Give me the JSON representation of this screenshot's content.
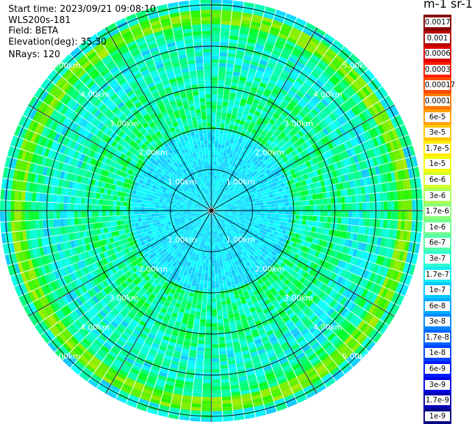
{
  "info": {
    "start_time": "Start time: 2023/09/21 09:08:10",
    "instrument": "WLS200s-181",
    "field": "Field: BETA",
    "elevation": "Elevation(deg): 35.30",
    "nrays": "NRays: 120"
  },
  "units": "m-1 sr-1",
  "range_rings": {
    "labels": [
      "1.00km",
      "2.00km",
      "3.00km",
      "4.00km",
      "5.00km"
    ]
  },
  "colorbar": {
    "levels": [
      {
        "label": "0.0017",
        "color": "#8b0000"
      },
      {
        "label": "0.001",
        "color": "#b40000"
      },
      {
        "label": "0.0006",
        "color": "#dc0000"
      },
      {
        "label": "0.0003",
        "color": "#ff1a00"
      },
      {
        "label": "0.00017",
        "color": "#ff4b00"
      },
      {
        "label": "0.0001",
        "color": "#ff7800"
      },
      {
        "label": "6e-5",
        "color": "#ffa000"
      },
      {
        "label": "3e-5",
        "color": "#ffc800"
      },
      {
        "label": "1.7e-5",
        "color": "#ffeb00"
      },
      {
        "label": "1e-5",
        "color": "#f5ff0a"
      },
      {
        "label": "6e-6",
        "color": "#d2ff2d"
      },
      {
        "label": "3e-6",
        "color": "#aaff55"
      },
      {
        "label": "1.7e-6",
        "color": "#87ff78"
      },
      {
        "label": "1e-6",
        "color": "#6eff8c"
      },
      {
        "label": "6e-7",
        "color": "#50ffaa"
      },
      {
        "label": "3e-7",
        "color": "#2dffd2"
      },
      {
        "label": "1.7e-7",
        "color": "#14ebf5"
      },
      {
        "label": "1e-7",
        "color": "#00c8ff"
      },
      {
        "label": "6e-8",
        "color": "#00aaff"
      },
      {
        "label": "3e-8",
        "color": "#0087ff"
      },
      {
        "label": "1.7e-8",
        "color": "#0064ff"
      },
      {
        "label": "1e-8",
        "color": "#0041ff"
      },
      {
        "label": "6e-9",
        "color": "#0019ff"
      },
      {
        "label": "3e-9",
        "color": "#0000e6"
      },
      {
        "label": "1.7e-9",
        "color": "#0000b4"
      },
      {
        "label": "1e-9",
        "color": "#000082"
      }
    ]
  }
}
